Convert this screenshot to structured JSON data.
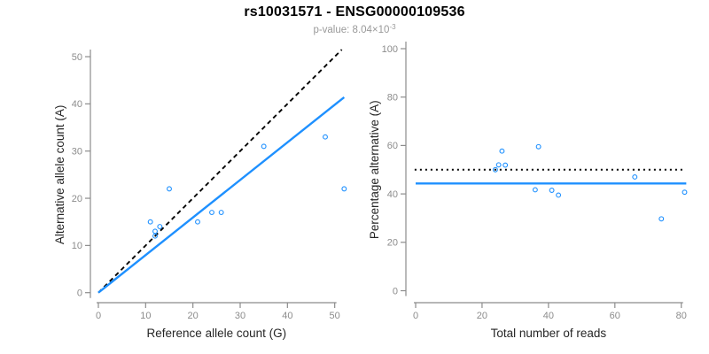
{
  "header": {
    "title": "rs10031571 - ENSG00000109536",
    "subtitle_base": "p-value: 8.04×10",
    "subtitle_exponent": "-3"
  },
  "colors": {
    "point": "#1E90FF",
    "fit_line": "#1E90FF",
    "reference_line": "#000000",
    "axis": "#8C8C8C",
    "tick_label": "#8C8C8C",
    "axis_title": "#262626",
    "title": "#000000",
    "subtitle": "#999999"
  },
  "chart_data": [
    {
      "type": "scatter",
      "name": "allele-counts",
      "xlabel": "Reference allele count (G)",
      "ylabel": "Alternative allele count (A)",
      "xlim": [
        0,
        52
      ],
      "ylim": [
        0,
        52
      ],
      "xticks": [
        0,
        10,
        20,
        30,
        40,
        50
      ],
      "yticks": [
        0,
        10,
        20,
        30,
        40,
        50
      ],
      "grid": false,
      "points": [
        [
          11,
          15
        ],
        [
          12,
          12
        ],
        [
          12,
          13
        ],
        [
          13,
          14
        ],
        [
          15,
          22
        ],
        [
          21,
          15
        ],
        [
          24,
          17
        ],
        [
          26,
          17
        ],
        [
          35,
          31
        ],
        [
          48,
          33
        ],
        [
          52,
          22
        ]
      ],
      "lines": [
        {
          "name": "identity-line",
          "style": "dashed",
          "color": "#000000",
          "x1": 0,
          "y1": 0,
          "x2": 51.5,
          "y2": 51.5
        },
        {
          "name": "regression-line",
          "style": "solid",
          "color": "#1E90FF",
          "x1": 0,
          "y1": 0,
          "x2": 52,
          "y2": 41.4
        }
      ]
    },
    {
      "type": "scatter",
      "name": "percentage-alternative",
      "xlabel": "Total number of reads",
      "ylabel": "Percentage alternative (A)",
      "xlim": [
        0,
        81.5
      ],
      "ylim": [
        0,
        100
      ],
      "xticks": [
        0,
        20,
        40,
        60,
        80
      ],
      "yticks": [
        0,
        20,
        40,
        60,
        80,
        100
      ],
      "grid": false,
      "points": [
        [
          24,
          50.0
        ],
        [
          25,
          52.0
        ],
        [
          26,
          57.7
        ],
        [
          27,
          51.9
        ],
        [
          36,
          41.7
        ],
        [
          37,
          59.5
        ],
        [
          41,
          41.5
        ],
        [
          43,
          39.5
        ],
        [
          66,
          47.0
        ],
        [
          74,
          29.7
        ],
        [
          81,
          40.7
        ]
      ],
      "lines": [
        {
          "name": "fifty-percent-line",
          "style": "dotted",
          "color": "#000000",
          "x1": -0.3,
          "y1": 50,
          "x2": 80.3,
          "y2": 50
        },
        {
          "name": "mean-percentage-line",
          "style": "solid",
          "color": "#1E90FF",
          "x1": 0,
          "y1": 44.3,
          "x2": 81.5,
          "y2": 44.3
        }
      ]
    }
  ]
}
